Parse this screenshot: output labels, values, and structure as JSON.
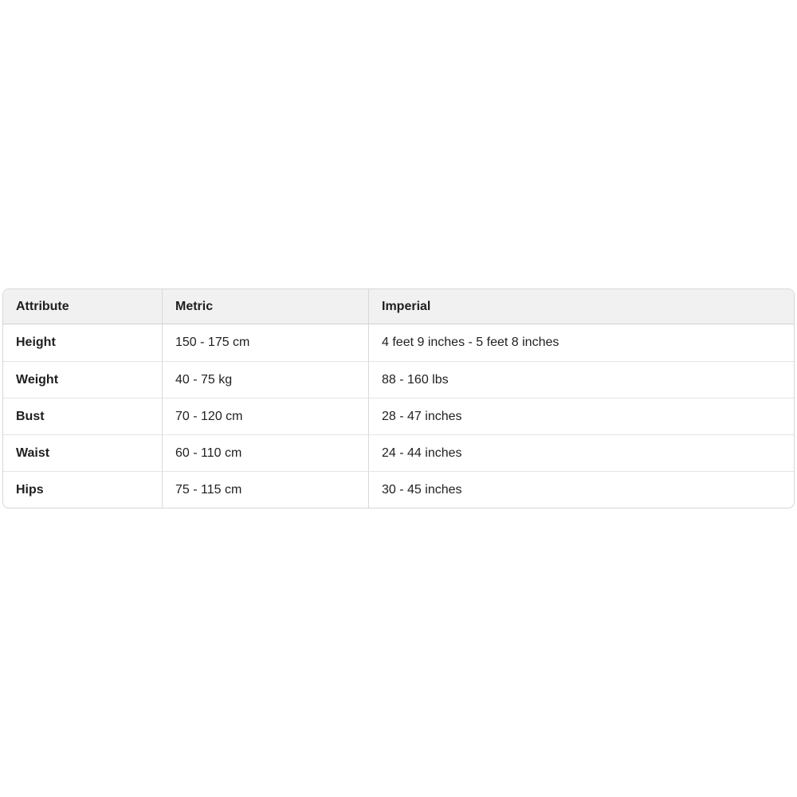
{
  "colors": {
    "page_background": "#ffffff",
    "header_background": "#f1f1f1",
    "outer_border": "#d6d6d6",
    "column_separator": "#d9d9d9",
    "row_separator": "#e4e4e4",
    "text": "#1f1f1f"
  },
  "table": {
    "columns": [
      {
        "label": "Attribute"
      },
      {
        "label": "Metric"
      },
      {
        "label": "Imperial"
      }
    ],
    "rows": [
      {
        "attribute": "Height",
        "metric": "150 - 175 cm",
        "imperial": "4 feet 9 inches - 5 feet 8 inches"
      },
      {
        "attribute": "Weight",
        "metric": "40 - 75 kg",
        "imperial": "88 - 160 lbs"
      },
      {
        "attribute": "Bust",
        "metric": "70 - 120 cm",
        "imperial": "28 - 47 inches"
      },
      {
        "attribute": "Waist",
        "metric": "60 - 110 cm",
        "imperial": "24 - 44 inches"
      },
      {
        "attribute": "Hips",
        "metric": "75 - 115 cm",
        "imperial": "30 - 45 inches"
      }
    ]
  },
  "chart_data": {
    "type": "table",
    "title": "",
    "columns": [
      "Attribute",
      "Metric",
      "Imperial"
    ],
    "rows": [
      [
        "Height",
        "150 - 175 cm",
        "4 feet 9 inches - 5 feet 8 inches"
      ],
      [
        "Weight",
        "40 - 75 kg",
        "88 - 160 lbs"
      ],
      [
        "Bust",
        "70 - 120 cm",
        "28 - 47 inches"
      ],
      [
        "Waist",
        "60 - 110 cm",
        "24 - 44 inches"
      ],
      [
        "Hips",
        "75 - 115 cm",
        "30 - 45 inches"
      ]
    ]
  }
}
